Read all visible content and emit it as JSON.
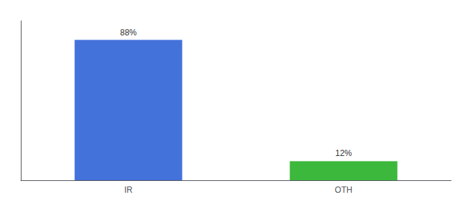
{
  "chart_data": {
    "type": "bar",
    "categories": [
      "IR",
      "OTH"
    ],
    "values": [
      88,
      12
    ],
    "value_labels": [
      "88%",
      "12%"
    ],
    "colors": [
      "#4472db",
      "#3cb83c"
    ],
    "ylim": [
      0,
      100
    ],
    "grid": false,
    "data_labels": true,
    "tick_labels": "x"
  }
}
